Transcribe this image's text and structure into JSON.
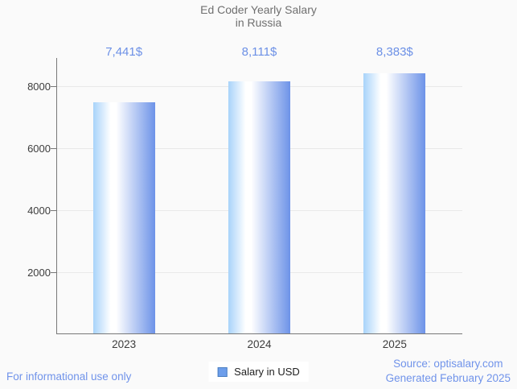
{
  "title": {
    "line1": "Ed Coder Yearly Salary",
    "line2": "in Russia"
  },
  "chart_data": {
    "type": "bar",
    "title": "Ed Coder Yearly Salary in Russia",
    "categories": [
      "2023",
      "2024",
      "2025"
    ],
    "series": [
      {
        "name": "Salary in USD",
        "values": [
          7441,
          8111,
          8383
        ]
      }
    ],
    "value_labels": [
      "7,441$",
      "8,111$",
      "8,383$"
    ],
    "xlabel": "",
    "ylabel": "",
    "ylim": [
      0,
      8900
    ],
    "yticks": [
      2000,
      4000,
      6000,
      8000
    ],
    "grid": true,
    "legend_position": "bottom-center"
  },
  "legend": {
    "label": "Salary in USD"
  },
  "footer": {
    "disclaimer": "For informational use only",
    "source": "Source: optisalary.com",
    "generated": "Generated February 2025"
  },
  "colors": {
    "background": "#fafafa",
    "title_text": "#6f6f6f",
    "annotation_text": "#6c90e6",
    "axis_label_text": "#3d3d3d",
    "axis_line": "#787878",
    "gridline": "#e9e9e9",
    "bar_gradient_left": "#a8d3fa",
    "bar_gradient_mid": "#ffffff",
    "bar_gradient_right": "#6d93e8",
    "legend_swatch_fill": "#6d9eeb",
    "legend_swatch_border": "#4a7fc1",
    "legend_text": "#1f1f1f",
    "footer_text": "#7093ea"
  }
}
